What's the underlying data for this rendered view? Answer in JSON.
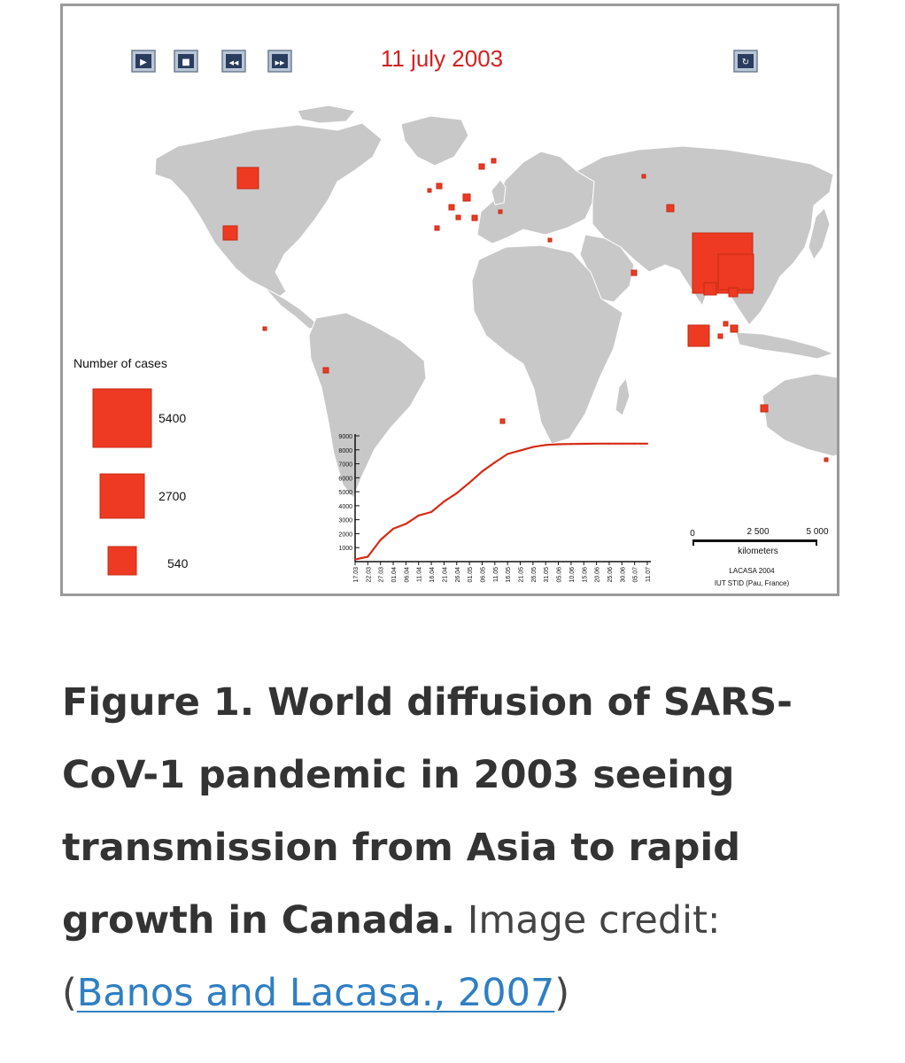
{
  "map": {
    "date_label": "11 july 2003",
    "controls": [
      {
        "name": "play-button",
        "icon": "play-icon",
        "glyph": "▶"
      },
      {
        "name": "stop-button",
        "icon": "stop-icon",
        "glyph": "■"
      },
      {
        "name": "rewind-button",
        "icon": "rewind-icon",
        "glyph": "◀◀"
      },
      {
        "name": "fast-forward-button",
        "icon": "fast-forward-icon",
        "glyph": "▶▶"
      },
      {
        "name": "replay-button",
        "icon": "replay-icon",
        "glyph": "↻"
      }
    ],
    "legend": {
      "title": "Number of cases",
      "entries": [
        {
          "label": "5400",
          "value": 5400
        },
        {
          "label": "2700",
          "value": 2700
        },
        {
          "label": "540",
          "value": 540
        }
      ]
    },
    "scale_bar": {
      "ticks": [
        "0",
        "2 500",
        "5 000"
      ],
      "unit": "kilometers"
    },
    "credit_lines": [
      "LACASA 2004",
      "IUT STID (Pau, France)"
    ],
    "colors": {
      "land": "#c8c8c8",
      "border": "#ffffff",
      "marker": "#ee3a22",
      "marker_outline": "#c42a14",
      "date": "#d42020",
      "frame": "#9a9a9a"
    },
    "markers": [
      {
        "region": "Canada",
        "cases": 251
      },
      {
        "region": "United States",
        "cases": 27
      },
      {
        "region": "China",
        "cases": 5327
      },
      {
        "region": "Hong Kong",
        "cases": 1755
      },
      {
        "region": "Taiwan",
        "cases": 346
      },
      {
        "region": "Singapore",
        "cases": 238
      },
      {
        "region": "Vietnam",
        "cases": 63
      },
      {
        "region": "Philippines",
        "cases": 14
      },
      {
        "region": "Mongolia",
        "cases": 9
      },
      {
        "region": "India",
        "cases": 3
      },
      {
        "region": "Australia",
        "cases": 6
      },
      {
        "region": "Brazil",
        "cases": 1
      },
      {
        "region": "Colombia",
        "cases": 1
      },
      {
        "region": "South Africa",
        "cases": 1
      },
      {
        "region": "New Zealand",
        "cases": 1
      }
    ]
  },
  "chart_data": {
    "type": "line",
    "x": [
      "17.03",
      "22.03",
      "27.03",
      "01.04",
      "06.04",
      "11.04",
      "16.04",
      "21.04",
      "26.04",
      "01.05",
      "06.05",
      "11.05",
      "16.05",
      "21.05",
      "26.05",
      "31.05",
      "05.06",
      "10.06",
      "15.06",
      "20.06",
      "25.06",
      "30.06",
      "05.07",
      "11.07"
    ],
    "series": [
      {
        "values": [
          150,
          350,
          1550,
          2350,
          2700,
          3300,
          3550,
          4300,
          4900,
          5650,
          6450,
          7100,
          7700,
          7950,
          8200,
          8350,
          8400,
          8420,
          8430,
          8440,
          8440,
          8440,
          8440,
          8440
        ]
      }
    ],
    "yticks": [
      1000,
      2000,
      3000,
      4000,
      5000,
      6000,
      7000,
      8000,
      9000
    ],
    "ylim": [
      0,
      9000
    ],
    "color": "#d62a14",
    "grid": false
  },
  "caption": {
    "bold_text": "Figure 1. World diffusion of SARS-CoV-1 pandemic in 2003 seeing transmission from Asia to rapid growth in Canada.",
    "credit_prefix": " Image credit: (",
    "link_text": "Banos and Lacasa., 2007",
    "credit_suffix": ")"
  }
}
